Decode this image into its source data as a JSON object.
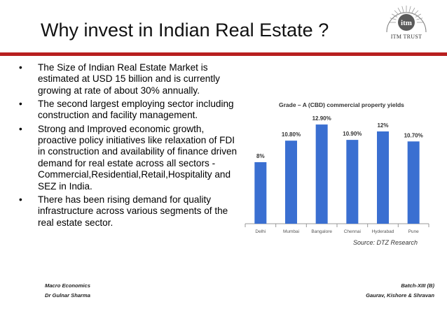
{
  "slide": {
    "title": "Why invest in Indian Real Estate ?",
    "logo_text": "itm",
    "logo_caption": "ITM TRUST",
    "accent_color": "#b81f1f",
    "bullet_glyph": "•",
    "bullets": [
      "The Size of Indian Real Estate Market is estimated at USD 15 billion and is currently growing at rate of about 30% annually.",
      "The second largest employing sector including construction and facility management.",
      "Strong and Improved economic growth, proactive policy initiatives like relaxation of FDI in construction and availability of finance driven demand for real estate across all sectors - Commercial,Residential,Retail,Hospitality and SEZ in India.",
      "There has been rising demand for quality infrastructure across various segments of the real estate sector."
    ]
  },
  "footer": {
    "left_line1": "Macro Economics",
    "left_line2": "Dr  Gulnar Sharma",
    "right_line1": "Batch-XIII (B)",
    "right_line2": "Gaurav, Kishore & Shravan"
  },
  "chart_data": {
    "type": "bar",
    "title": "Grade – A (CBD) commercial property yields",
    "source": "Source: DTZ Research",
    "categories": [
      "Delhi",
      "Mumbai",
      "Bangalore",
      "Chennai",
      "Hyderabad",
      "Pune"
    ],
    "values": [
      8,
      10.8,
      12.9,
      10.9,
      12,
      10.7
    ],
    "labels": [
      "8%",
      "10.80%",
      "12.90%",
      "10.90%",
      "12%",
      "10.70%"
    ],
    "ylim": [
      0,
      14
    ],
    "bar_color": "#3a6fd1",
    "grid": false
  }
}
